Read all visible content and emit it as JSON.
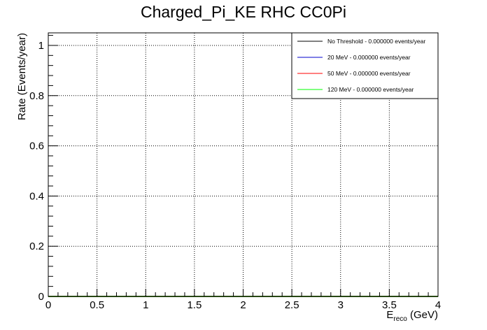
{
  "chart_data": {
    "type": "line",
    "title": "Charged_Pi_KE RHC CC0Pi",
    "xlabel": {
      "main": "E",
      "sub": "reco",
      "unit": " (GeV)"
    },
    "ylabel": "Rate (Events/year)",
    "xlim": [
      0,
      4
    ],
    "ylim": [
      0,
      1.05
    ],
    "grid": true,
    "legend_position": "top-right",
    "x_ticks": [
      0,
      0.5,
      1,
      1.5,
      2,
      2.5,
      3,
      3.5,
      4
    ],
    "x_tick_labels": [
      "0",
      "0.5",
      "1",
      "1.5",
      "2",
      "2.5",
      "3",
      "3.5",
      "4"
    ],
    "y_ticks": [
      0,
      0.2,
      0.4,
      0.6,
      0.8,
      1
    ],
    "y_tick_labels": [
      "0",
      "0.2",
      "0.4",
      "0.6",
      "0.8",
      "1"
    ],
    "series": [
      {
        "name": "No Threshold - 0.000000 events/year",
        "color": "#000000",
        "x": [
          0,
          4
        ],
        "values": [
          0,
          0
        ]
      },
      {
        "name": "20 MeV - 0.000000 events/year",
        "color": "#0000cc",
        "x": [
          0,
          4
        ],
        "values": [
          0,
          0
        ]
      },
      {
        "name": "50 MeV - 0.000000 events/year",
        "color": "#ff0000",
        "x": [
          0,
          4
        ],
        "values": [
          0,
          0
        ]
      },
      {
        "name": "120 MeV - 0.000000 events/year",
        "color": "#00ff00",
        "x": [
          0,
          4
        ],
        "values": [
          0,
          0
        ]
      }
    ]
  }
}
